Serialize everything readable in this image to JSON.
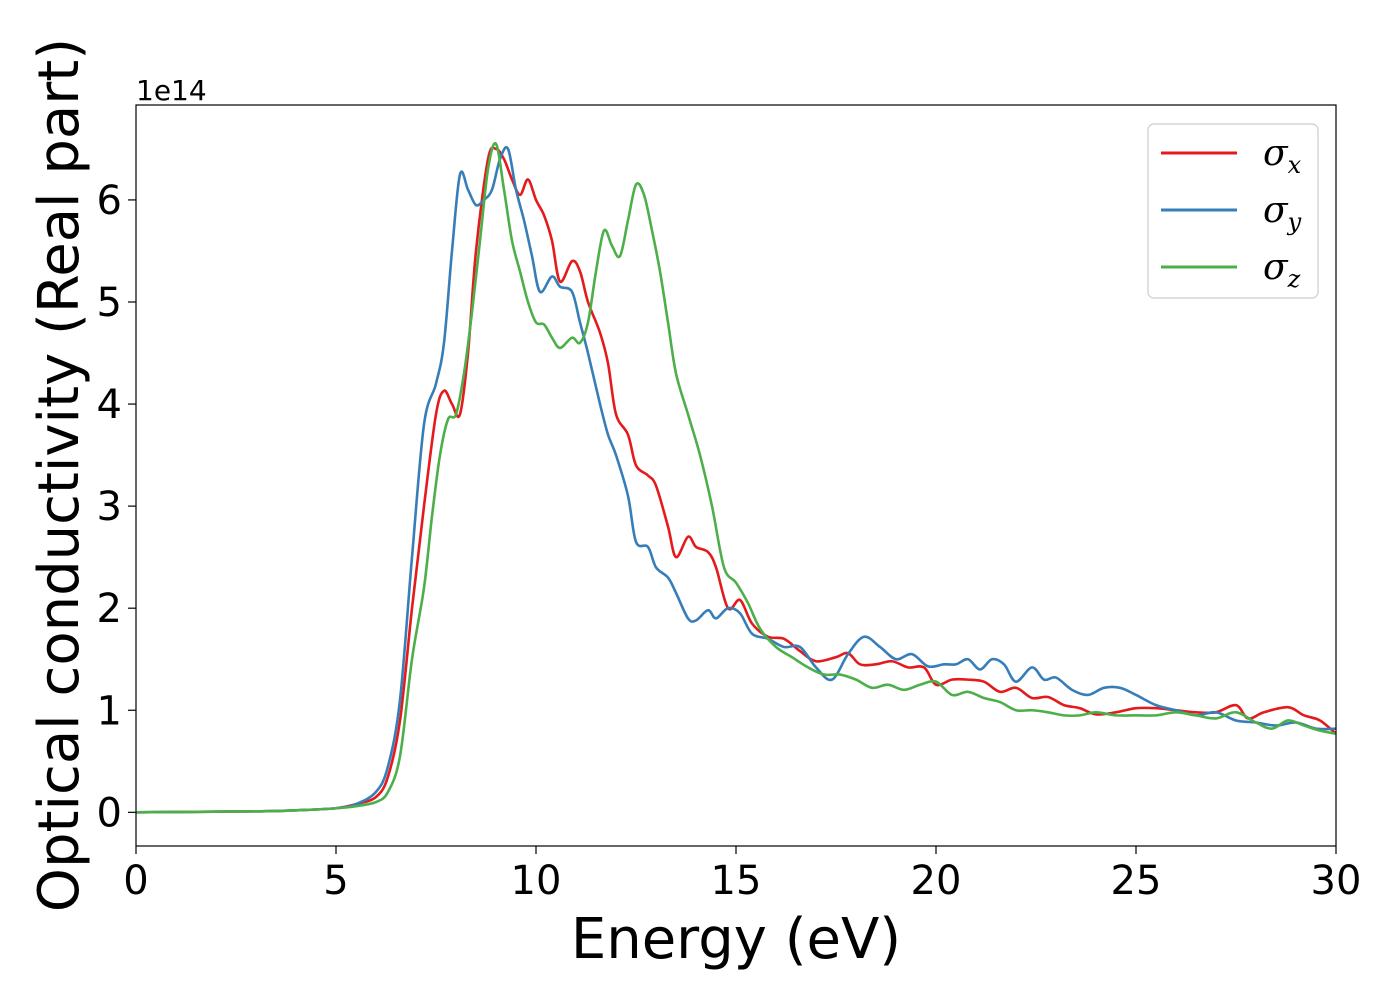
{
  "chart_data": {
    "type": "line",
    "xlabel": "Energy (eV)",
    "ylabel": "Optical conductivity (Real part)",
    "y_offset_text": "1e14",
    "xlim": [
      0,
      30
    ],
    "ylim": [
      -0.33,
      6.93
    ],
    "x_ticks": [
      0,
      5,
      10,
      15,
      20,
      25,
      30
    ],
    "y_ticks": [
      0,
      1,
      2,
      3,
      4,
      5,
      6
    ],
    "grid": false,
    "legend_position": "top-right",
    "series": [
      {
        "name": "σx",
        "symbol": "σ",
        "subscript": "x",
        "color": "#e41a1c",
        "points": [
          [
            0,
            0
          ],
          [
            3,
            0.01
          ],
          [
            4,
            0.02
          ],
          [
            5,
            0.04
          ],
          [
            5.5,
            0.08
          ],
          [
            6,
            0.15
          ],
          [
            6.3,
            0.35
          ],
          [
            6.6,
            0.9
          ],
          [
            6.9,
            2.0
          ],
          [
            7.2,
            3.0
          ],
          [
            7.5,
            3.9
          ],
          [
            7.7,
            4.13
          ],
          [
            7.9,
            4.0
          ],
          [
            8.1,
            3.9
          ],
          [
            8.3,
            4.5
          ],
          [
            8.5,
            5.5
          ],
          [
            8.8,
            6.4
          ],
          [
            9.0,
            6.5
          ],
          [
            9.2,
            6.4
          ],
          [
            9.4,
            6.2
          ],
          [
            9.6,
            6.05
          ],
          [
            9.8,
            6.2
          ],
          [
            10.0,
            6.0
          ],
          [
            10.2,
            5.85
          ],
          [
            10.4,
            5.6
          ],
          [
            10.6,
            5.2
          ],
          [
            10.9,
            5.4
          ],
          [
            11.1,
            5.3
          ],
          [
            11.3,
            5.0
          ],
          [
            11.6,
            4.7
          ],
          [
            11.8,
            4.4
          ],
          [
            12.0,
            3.9
          ],
          [
            12.3,
            3.7
          ],
          [
            12.5,
            3.4
          ],
          [
            12.8,
            3.3
          ],
          [
            13.0,
            3.2
          ],
          [
            13.3,
            2.8
          ],
          [
            13.5,
            2.5
          ],
          [
            13.8,
            2.7
          ],
          [
            14.0,
            2.6
          ],
          [
            14.3,
            2.55
          ],
          [
            14.5,
            2.4
          ],
          [
            14.8,
            2.0
          ],
          [
            15.1,
            2.08
          ],
          [
            15.4,
            1.85
          ],
          [
            15.8,
            1.72
          ],
          [
            16.2,
            1.7
          ],
          [
            16.6,
            1.58
          ],
          [
            17.0,
            1.48
          ],
          [
            17.5,
            1.52
          ],
          [
            17.8,
            1.56
          ],
          [
            18.1,
            1.45
          ],
          [
            18.5,
            1.45
          ],
          [
            18.9,
            1.48
          ],
          [
            19.3,
            1.42
          ],
          [
            19.7,
            1.42
          ],
          [
            20.0,
            1.25
          ],
          [
            20.4,
            1.3
          ],
          [
            20.8,
            1.3
          ],
          [
            21.2,
            1.28
          ],
          [
            21.6,
            1.18
          ],
          [
            22.0,
            1.22
          ],
          [
            22.4,
            1.12
          ],
          [
            22.8,
            1.13
          ],
          [
            23.2,
            1.05
          ],
          [
            23.6,
            1.02
          ],
          [
            24.0,
            0.96
          ],
          [
            24.5,
            0.98
          ],
          [
            25.0,
            1.02
          ],
          [
            25.5,
            1.02
          ],
          [
            26.0,
            1.0
          ],
          [
            26.5,
            0.98
          ],
          [
            27.0,
            0.98
          ],
          [
            27.5,
            1.05
          ],
          [
            27.8,
            0.92
          ],
          [
            28.2,
            0.98
          ],
          [
            28.8,
            1.03
          ],
          [
            29.2,
            0.95
          ],
          [
            29.6,
            0.9
          ],
          [
            30,
            0.77
          ]
        ]
      },
      {
        "name": "σy",
        "symbol": "σ",
        "subscript": "y",
        "color": "#377eb8",
        "points": [
          [
            0,
            0
          ],
          [
            3,
            0.01
          ],
          [
            4,
            0.02
          ],
          [
            5,
            0.04
          ],
          [
            5.5,
            0.08
          ],
          [
            6,
            0.2
          ],
          [
            6.3,
            0.45
          ],
          [
            6.6,
            1.1
          ],
          [
            6.9,
            2.5
          ],
          [
            7.2,
            3.8
          ],
          [
            7.5,
            4.2
          ],
          [
            7.7,
            4.6
          ],
          [
            7.9,
            5.5
          ],
          [
            8.1,
            6.25
          ],
          [
            8.3,
            6.1
          ],
          [
            8.5,
            5.95
          ],
          [
            8.7,
            6.0
          ],
          [
            8.9,
            6.1
          ],
          [
            9.1,
            6.4
          ],
          [
            9.3,
            6.5
          ],
          [
            9.5,
            6.1
          ],
          [
            9.7,
            5.8
          ],
          [
            9.9,
            5.45
          ],
          [
            10.1,
            5.1
          ],
          [
            10.4,
            5.25
          ],
          [
            10.6,
            5.15
          ],
          [
            10.9,
            5.1
          ],
          [
            11.1,
            4.8
          ],
          [
            11.3,
            4.5
          ],
          [
            11.6,
            4.0
          ],
          [
            11.8,
            3.7
          ],
          [
            12.0,
            3.5
          ],
          [
            12.3,
            3.1
          ],
          [
            12.5,
            2.65
          ],
          [
            12.8,
            2.6
          ],
          [
            13.0,
            2.4
          ],
          [
            13.3,
            2.3
          ],
          [
            13.5,
            2.15
          ],
          [
            13.8,
            1.9
          ],
          [
            14.0,
            1.88
          ],
          [
            14.3,
            1.98
          ],
          [
            14.5,
            1.9
          ],
          [
            14.8,
            2.0
          ],
          [
            15.1,
            1.95
          ],
          [
            15.4,
            1.75
          ],
          [
            15.8,
            1.7
          ],
          [
            16.2,
            1.62
          ],
          [
            16.6,
            1.62
          ],
          [
            17.0,
            1.42
          ],
          [
            17.4,
            1.3
          ],
          [
            17.8,
            1.55
          ],
          [
            18.2,
            1.72
          ],
          [
            18.6,
            1.62
          ],
          [
            19.0,
            1.5
          ],
          [
            19.4,
            1.55
          ],
          [
            19.8,
            1.43
          ],
          [
            20.2,
            1.45
          ],
          [
            20.5,
            1.45
          ],
          [
            20.8,
            1.5
          ],
          [
            21.1,
            1.4
          ],
          [
            21.4,
            1.5
          ],
          [
            21.7,
            1.45
          ],
          [
            22.0,
            1.28
          ],
          [
            22.4,
            1.42
          ],
          [
            22.7,
            1.3
          ],
          [
            23.0,
            1.32
          ],
          [
            23.4,
            1.2
          ],
          [
            23.8,
            1.15
          ],
          [
            24.2,
            1.22
          ],
          [
            24.6,
            1.22
          ],
          [
            25.0,
            1.15
          ],
          [
            25.5,
            1.05
          ],
          [
            26.0,
            1.0
          ],
          [
            26.5,
            0.95
          ],
          [
            27.0,
            0.98
          ],
          [
            27.5,
            0.9
          ],
          [
            28.0,
            0.88
          ],
          [
            28.5,
            0.85
          ],
          [
            29.0,
            0.88
          ],
          [
            29.5,
            0.82
          ],
          [
            30,
            0.82
          ]
        ]
      },
      {
        "name": "σz",
        "symbol": "σ",
        "subscript": "z",
        "color": "#4daf4a",
        "points": [
          [
            0,
            0
          ],
          [
            3,
            0.01
          ],
          [
            4,
            0.02
          ],
          [
            5,
            0.04
          ],
          [
            5.5,
            0.06
          ],
          [
            6,
            0.1
          ],
          [
            6.3,
            0.2
          ],
          [
            6.6,
            0.55
          ],
          [
            6.9,
            1.5
          ],
          [
            7.2,
            2.2
          ],
          [
            7.4,
            2.9
          ],
          [
            7.6,
            3.5
          ],
          [
            7.8,
            3.85
          ],
          [
            8.0,
            3.9
          ],
          [
            8.2,
            4.3
          ],
          [
            8.4,
            4.9
          ],
          [
            8.6,
            5.6
          ],
          [
            8.8,
            6.3
          ],
          [
            9.0,
            6.55
          ],
          [
            9.2,
            6.1
          ],
          [
            9.4,
            5.6
          ],
          [
            9.6,
            5.3
          ],
          [
            9.8,
            5.0
          ],
          [
            10.0,
            4.8
          ],
          [
            10.2,
            4.78
          ],
          [
            10.4,
            4.65
          ],
          [
            10.6,
            4.55
          ],
          [
            10.9,
            4.65
          ],
          [
            11.1,
            4.6
          ],
          [
            11.3,
            4.8
          ],
          [
            11.5,
            5.3
          ],
          [
            11.7,
            5.7
          ],
          [
            11.9,
            5.55
          ],
          [
            12.1,
            5.45
          ],
          [
            12.3,
            5.8
          ],
          [
            12.5,
            6.15
          ],
          [
            12.7,
            6.05
          ],
          [
            12.9,
            5.7
          ],
          [
            13.1,
            5.3
          ],
          [
            13.3,
            4.8
          ],
          [
            13.5,
            4.3
          ],
          [
            13.8,
            3.9
          ],
          [
            14.1,
            3.5
          ],
          [
            14.4,
            3.0
          ],
          [
            14.7,
            2.4
          ],
          [
            15.0,
            2.25
          ],
          [
            15.3,
            2.05
          ],
          [
            15.6,
            1.8
          ],
          [
            16.0,
            1.62
          ],
          [
            16.4,
            1.52
          ],
          [
            16.8,
            1.42
          ],
          [
            17.2,
            1.35
          ],
          [
            17.6,
            1.35
          ],
          [
            18.0,
            1.3
          ],
          [
            18.4,
            1.22
          ],
          [
            18.8,
            1.25
          ],
          [
            19.2,
            1.2
          ],
          [
            19.6,
            1.25
          ],
          [
            20.0,
            1.28
          ],
          [
            20.4,
            1.15
          ],
          [
            20.8,
            1.18
          ],
          [
            21.2,
            1.12
          ],
          [
            21.6,
            1.08
          ],
          [
            22.0,
            1.0
          ],
          [
            22.4,
            1.0
          ],
          [
            22.8,
            0.98
          ],
          [
            23.2,
            0.95
          ],
          [
            23.6,
            0.95
          ],
          [
            24.0,
            0.98
          ],
          [
            24.5,
            0.95
          ],
          [
            25.0,
            0.95
          ],
          [
            25.5,
            0.95
          ],
          [
            26.0,
            0.98
          ],
          [
            26.5,
            0.95
          ],
          [
            27.0,
            0.92
          ],
          [
            27.5,
            0.98
          ],
          [
            28.0,
            0.88
          ],
          [
            28.4,
            0.82
          ],
          [
            28.8,
            0.9
          ],
          [
            29.2,
            0.85
          ],
          [
            29.6,
            0.8
          ],
          [
            30,
            0.77
          ]
        ]
      }
    ]
  }
}
